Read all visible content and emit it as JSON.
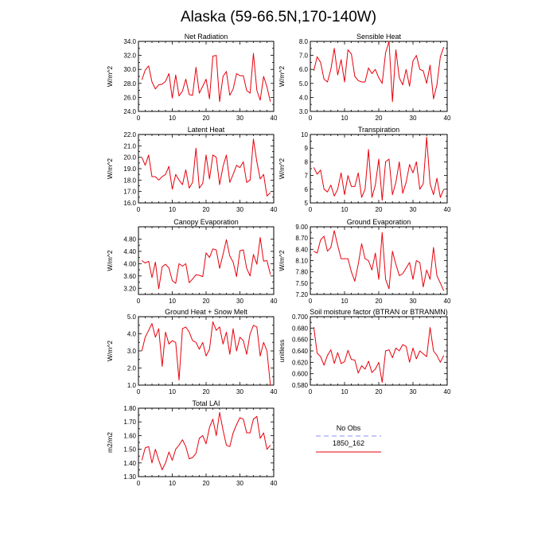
{
  "title": "Alaska (59-66.5N,170-140W)",
  "colors": {
    "series": "#e8000b",
    "obs": "#8c8cff",
    "frame": "#000000"
  },
  "legend": {
    "entries": [
      {
        "label": "No Obs",
        "color": "#8c8cff",
        "style": "dashed"
      },
      {
        "label": "1850_162",
        "color": "#e8000b",
        "style": "solid"
      }
    ]
  },
  "chart_data": [
    {
      "type": "line",
      "title": "Net Radiation",
      "ylabel": "W/m^2",
      "xlim": [
        0,
        40
      ],
      "ylim": [
        24,
        34
      ],
      "xticks": [
        "0",
        "10",
        "20",
        "30",
        "40"
      ],
      "yticks": [
        "24.0",
        "26.0",
        "28.0",
        "30.0",
        "32.0",
        "34.0"
      ],
      "series": [
        {
          "x": [
            1,
            2,
            3,
            4,
            5,
            6,
            7,
            8,
            9,
            10,
            11,
            12,
            13,
            14,
            15,
            16,
            17,
            18,
            19,
            20,
            21,
            22,
            23,
            24,
            25,
            26,
            27,
            28,
            29,
            30,
            31,
            32,
            33,
            34,
            35,
            36,
            37,
            38,
            39
          ],
          "values": [
            28.5,
            29.9,
            30.5,
            28.2,
            27.2,
            27.8,
            27.9,
            28.3,
            29.4,
            25.9,
            29.2,
            26.2,
            26.9,
            28.6,
            26.4,
            26.3,
            30.3,
            26.6,
            27.6,
            28.6,
            25.8,
            31.9,
            32.0,
            25.4,
            29.0,
            29.7,
            26.3,
            27.2,
            29.4,
            29.1,
            29.1,
            27.0,
            26.6,
            32.3,
            27.0,
            25.6,
            29.0,
            27.5,
            25.4
          ]
        }
      ]
    },
    {
      "type": "line",
      "title": "Sensible Heat",
      "ylabel": "W/m^2",
      "xlim": [
        0,
        40
      ],
      "ylim": [
        3,
        8
      ],
      "xticks": [
        "0",
        "10",
        "20",
        "30",
        "40"
      ],
      "yticks": [
        "3.0",
        "4.0",
        "5.0",
        "6.0",
        "7.0",
        "8.0"
      ],
      "series": [
        {
          "x": [
            1,
            2,
            3,
            4,
            5,
            6,
            7,
            8,
            9,
            10,
            11,
            12,
            13,
            14,
            15,
            16,
            17,
            18,
            19,
            20,
            21,
            22,
            23,
            24,
            25,
            26,
            27,
            28,
            29,
            30,
            31,
            32,
            33,
            34,
            35,
            36,
            37,
            38,
            39
          ],
          "values": [
            5.9,
            6.9,
            6.5,
            5.3,
            5.1,
            6.0,
            7.5,
            5.6,
            6.7,
            5.1,
            7.4,
            7.1,
            5.5,
            5.2,
            5.1,
            5.1,
            6.1,
            5.7,
            6.0,
            5.4,
            5.0,
            7.2,
            8.0,
            3.7,
            7.4,
            5.4,
            4.9,
            6.0,
            4.8,
            6.6,
            7.0,
            6.0,
            5.9,
            5.0,
            6.3,
            3.9,
            4.9,
            6.9,
            7.6
          ]
        }
      ]
    },
    {
      "type": "line",
      "title": "Latent Heat",
      "ylabel": "W/m^2",
      "xlim": [
        0,
        40
      ],
      "ylim": [
        16,
        22
      ],
      "xticks": [
        "0",
        "10",
        "20",
        "30",
        "40"
      ],
      "yticks": [
        "16.0",
        "17.0",
        "18.0",
        "19.0",
        "20.0",
        "21.0",
        "22.0"
      ],
      "series": [
        {
          "x": [
            1,
            2,
            3,
            4,
            5,
            6,
            7,
            8,
            9,
            10,
            11,
            12,
            13,
            14,
            15,
            16,
            17,
            18,
            19,
            20,
            21,
            22,
            23,
            24,
            25,
            26,
            27,
            28,
            29,
            30,
            31,
            32,
            33,
            34,
            35,
            36,
            37,
            38,
            39
          ],
          "values": [
            20.0,
            19.3,
            20.2,
            18.3,
            18.3,
            18.0,
            18.3,
            18.5,
            19.2,
            17.2,
            18.5,
            18.0,
            17.6,
            18.9,
            17.3,
            17.8,
            20.8,
            17.3,
            17.7,
            20.2,
            18.1,
            20.2,
            20.0,
            17.6,
            19.2,
            20.2,
            17.8,
            18.5,
            19.3,
            19.1,
            19.6,
            17.8,
            18.0,
            21.6,
            19.6,
            18.1,
            18.5,
            16.6,
            16.9
          ]
        }
      ]
    },
    {
      "type": "line",
      "title": "Transpiration",
      "ylabel": "W/m^2",
      "xlim": [
        0,
        40
      ],
      "ylim": [
        5,
        10
      ],
      "xticks": [
        "0",
        "10",
        "20",
        "30",
        "40"
      ],
      "yticks": [
        "5",
        "6",
        "7",
        "8",
        "9",
        "10"
      ],
      "series": [
        {
          "x": [
            1,
            2,
            3,
            4,
            5,
            6,
            7,
            8,
            9,
            10,
            11,
            12,
            13,
            14,
            15,
            16,
            17,
            18,
            19,
            20,
            21,
            22,
            23,
            24,
            25,
            26,
            27,
            28,
            29,
            30,
            31,
            32,
            33,
            34,
            35,
            36,
            37,
            38,
            39
          ],
          "values": [
            7.6,
            7.1,
            7.4,
            6.0,
            5.8,
            6.3,
            5.5,
            6.0,
            7.2,
            5.6,
            7.0,
            6.2,
            6.2,
            7.2,
            5.4,
            6.0,
            8.9,
            5.4,
            6.3,
            8.2,
            5.2,
            8.0,
            8.2,
            5.6,
            6.5,
            8.0,
            5.7,
            6.5,
            7.8,
            7.2,
            8.0,
            6.0,
            6.4,
            9.8,
            6.4,
            5.6,
            6.8,
            5.4,
            6.0
          ]
        }
      ]
    },
    {
      "type": "line",
      "title": "Canopy Evaporation",
      "ylabel": "W/m^2",
      "xlim": [
        0,
        40
      ],
      "ylim": [
        3.0,
        5.2
      ],
      "xticks": [
        "0",
        "10",
        "20",
        "30",
        "40"
      ],
      "yticks": [
        "3.20",
        "3.60",
        "4.00",
        "4.40",
        "4.80"
      ],
      "series": [
        {
          "x": [
            1,
            2,
            3,
            4,
            5,
            6,
            7,
            8,
            9,
            10,
            11,
            12,
            13,
            14,
            15,
            16,
            17,
            18,
            19,
            20,
            21,
            22,
            23,
            24,
            25,
            26,
            27,
            28,
            29,
            30,
            31,
            32,
            33,
            34,
            35,
            36,
            37,
            38,
            39
          ],
          "values": [
            4.1,
            4.02,
            4.08,
            3.55,
            4.05,
            3.18,
            3.9,
            3.98,
            3.86,
            3.45,
            3.36,
            4.0,
            3.92,
            4.0,
            3.38,
            3.5,
            3.64,
            3.62,
            3.58,
            4.35,
            4.2,
            4.48,
            4.45,
            3.85,
            4.3,
            4.78,
            4.25,
            4.05,
            3.58,
            4.42,
            4.45,
            3.85,
            3.6,
            4.3,
            3.98,
            4.85,
            4.08,
            4.1,
            3.65
          ]
        }
      ]
    },
    {
      "type": "line",
      "title": "Ground Evaporation",
      "ylabel": "W/m^2",
      "xlim": [
        0,
        40
      ],
      "ylim": [
        7.2,
        9.0
      ],
      "xticks": [
        "0",
        "10",
        "20",
        "30",
        "40"
      ],
      "yticks": [
        "7.20",
        "7.50",
        "7.80",
        "8.10",
        "8.40",
        "8.70",
        "9.00"
      ],
      "series": [
        {
          "x": [
            1,
            2,
            3,
            4,
            5,
            6,
            7,
            8,
            9,
            10,
            11,
            12,
            13,
            14,
            15,
            16,
            17,
            18,
            19,
            20,
            21,
            22,
            23,
            24,
            25,
            26,
            27,
            28,
            29,
            30,
            31,
            32,
            33,
            34,
            35,
            36,
            37,
            38,
            39
          ],
          "values": [
            8.35,
            8.3,
            8.65,
            8.75,
            8.35,
            8.45,
            8.9,
            8.5,
            8.15,
            8.15,
            8.15,
            7.8,
            7.55,
            8.0,
            8.55,
            8.15,
            8.1,
            7.85,
            8.3,
            7.6,
            8.85,
            7.6,
            7.35,
            8.35,
            8.0,
            7.7,
            7.75,
            7.9,
            8.05,
            7.6,
            8.1,
            8.05,
            7.4,
            7.85,
            7.6,
            8.45,
            7.7,
            7.5,
            7.3
          ]
        }
      ]
    },
    {
      "type": "line",
      "title": "Ground Heat + Snow Melt",
      "ylabel": "W/m^2",
      "xlim": [
        0,
        40
      ],
      "ylim": [
        1,
        5
      ],
      "xticks": [
        "0",
        "10",
        "20",
        "30",
        "40"
      ],
      "yticks": [
        "1.0",
        "2.0",
        "3.0",
        "4.0",
        "5.0"
      ],
      "series": [
        {
          "x": [
            1,
            2,
            3,
            4,
            5,
            6,
            7,
            8,
            9,
            10,
            11,
            12,
            13,
            14,
            15,
            16,
            17,
            18,
            19,
            20,
            21,
            22,
            23,
            24,
            25,
            26,
            27,
            28,
            29,
            30,
            31,
            32,
            33,
            34,
            35,
            36,
            37,
            38,
            39
          ],
          "values": [
            3.0,
            3.8,
            4.2,
            4.6,
            3.8,
            4.3,
            2.1,
            4.1,
            3.4,
            3.6,
            3.5,
            1.3,
            4.3,
            4.4,
            4.1,
            3.6,
            3.5,
            3.1,
            3.5,
            2.7,
            3.1,
            4.7,
            4.2,
            4.4,
            3.4,
            4.1,
            2.8,
            4.3,
            3.0,
            3.8,
            3.6,
            2.8,
            4.0,
            4.5,
            4.4,
            2.7,
            3.5,
            3.0,
            1.0
          ]
        }
      ]
    },
    {
      "type": "line",
      "title": "Soil moisture factor (BTRAN or BTRANMN)",
      "ylabel": "unitless",
      "xlim": [
        0,
        40
      ],
      "ylim": [
        0.58,
        0.7
      ],
      "xticks": [
        "0",
        "10",
        "20",
        "30",
        "40"
      ],
      "yticks": [
        "0.580",
        "0.600",
        "0.620",
        "0.640",
        "0.660",
        "0.680",
        "0.700"
      ],
      "series": [
        {
          "x": [
            1,
            2,
            3,
            4,
            5,
            6,
            7,
            8,
            9,
            10,
            11,
            12,
            13,
            14,
            15,
            16,
            17,
            18,
            19,
            20,
            21,
            22,
            23,
            24,
            25,
            26,
            27,
            28,
            29,
            30,
            31,
            32,
            33,
            34,
            35,
            36,
            37,
            38,
            39
          ],
          "values": [
            0.682,
            0.636,
            0.63,
            0.615,
            0.632,
            0.642,
            0.618,
            0.637,
            0.618,
            0.621,
            0.641,
            0.625,
            0.624,
            0.601,
            0.614,
            0.608,
            0.622,
            0.602,
            0.608,
            0.62,
            0.585,
            0.64,
            0.642,
            0.628,
            0.645,
            0.64,
            0.651,
            0.648,
            0.62,
            0.645,
            0.626,
            0.64,
            0.635,
            0.63,
            0.681,
            0.64,
            0.632,
            0.62,
            0.632
          ]
        }
      ]
    },
    {
      "type": "line",
      "title": "Total LAI",
      "ylabel": "m2/m2",
      "xlim": [
        0,
        40
      ],
      "ylim": [
        1.3,
        1.8
      ],
      "xticks": [
        "0",
        "10",
        "20",
        "30",
        "40"
      ],
      "yticks": [
        "1.30",
        "1.40",
        "1.50",
        "1.60",
        "1.70",
        "1.80"
      ],
      "series": [
        {
          "x": [
            1,
            2,
            3,
            4,
            5,
            6,
            7,
            8,
            9,
            10,
            11,
            12,
            13,
            14,
            15,
            16,
            17,
            18,
            19,
            20,
            21,
            22,
            23,
            24,
            25,
            26,
            27,
            28,
            29,
            30,
            31,
            32,
            33,
            34,
            35,
            36,
            37,
            38,
            39
          ],
          "values": [
            1.42,
            1.51,
            1.52,
            1.4,
            1.5,
            1.42,
            1.35,
            1.4,
            1.48,
            1.42,
            1.5,
            1.53,
            1.57,
            1.52,
            1.43,
            1.44,
            1.47,
            1.58,
            1.6,
            1.54,
            1.66,
            1.72,
            1.6,
            1.77,
            1.64,
            1.53,
            1.52,
            1.62,
            1.68,
            1.73,
            1.72,
            1.62,
            1.62,
            1.72,
            1.74,
            1.58,
            1.62,
            1.5,
            1.53
          ]
        }
      ]
    }
  ]
}
